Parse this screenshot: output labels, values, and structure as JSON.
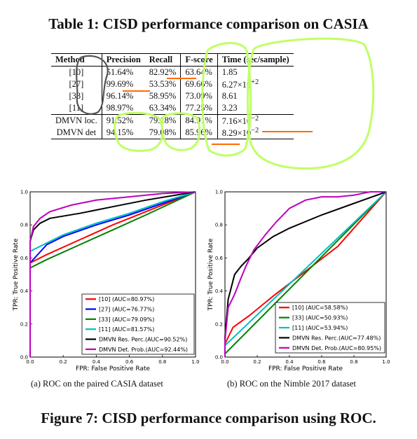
{
  "table": {
    "title": "Table 1: CISD performance comparison on CASIA",
    "headers": [
      "Method",
      "Precision",
      "Recall",
      "F-score",
      "Time (sec/sample)"
    ],
    "rows": [
      [
        "[10]",
        "51.64%",
        "82.92%",
        "63.64%",
        "1.85"
      ],
      [
        "[27]",
        "99.69%",
        "53.53%",
        "69.66%",
        "6.27×10",
        "+2"
      ],
      [
        "[33]",
        "96.14%",
        "58.95%",
        "73.09%",
        "8.61"
      ],
      [
        "[11]",
        "98.97%",
        "63.34%",
        "77.25%",
        "3.23"
      ],
      [
        "DMVN loc.",
        "91.52%",
        "79.18%",
        "84.91%",
        "7.16×10",
        "−2"
      ],
      [
        "DMVN det",
        "94.15%",
        "79.08%",
        "85.96%",
        "8.29×10",
        "−2"
      ]
    ]
  },
  "figure_caption": "Figure 7: CISD performance comparison using ROC.",
  "subcaptions": [
    "(a) ROC on the paired CASIA dataset",
    "(b) ROC on the Nimble 2017 dataset"
  ],
  "colors": {
    "red": "#ff0000",
    "blue": "#0000ff",
    "green": "#008000",
    "cyan": "#00bfbf",
    "black": "#000000",
    "magenta": "#bf00bf",
    "annot_green": "#bfff66",
    "annot_orange": "#ff6a00",
    "annot_gray": "#555555"
  },
  "chart_data": [
    {
      "type": "line",
      "xlabel": "FPR: False Positive Rate",
      "ylabel": "TPR: True Positive Rate",
      "xlim": [
        0,
        1
      ],
      "ylim": [
        0,
        1
      ],
      "xticks": [
        "0.0",
        "0.2",
        "0.4",
        "0.6",
        "0.8",
        "1.0"
      ],
      "yticks": [
        "0.0",
        "0.2",
        "0.4",
        "0.6",
        "0.8",
        "1.0"
      ],
      "legend_position": "lower-right",
      "series": [
        {
          "name": "[10] (AUC=80.97%)",
          "color": "red",
          "x": [
            0,
            0.0,
            0.1,
            0.3,
            0.5,
            0.7,
            1.0
          ],
          "y": [
            0,
            0.57,
            0.62,
            0.71,
            0.8,
            0.88,
            1.0
          ]
        },
        {
          "name": "[27] (AUC=76.77%)",
          "color": "blue",
          "x": [
            0,
            0.0,
            0.1,
            0.2,
            0.4,
            0.6,
            0.8,
            1.0
          ],
          "y": [
            0,
            0.57,
            0.68,
            0.73,
            0.8,
            0.86,
            0.93,
            1.0
          ]
        },
        {
          "name": "[33] (AUC=79.09%)",
          "color": "green",
          "x": [
            0,
            0.0,
            0.1,
            0.3,
            0.5,
            0.7,
            1.0
          ],
          "y": [
            0,
            0.54,
            0.59,
            0.68,
            0.77,
            0.86,
            1.0
          ]
        },
        {
          "name": "[11] (AUC=81.57%)",
          "color": "cyan",
          "x": [
            0,
            0.0,
            0.1,
            0.2,
            0.4,
            0.6,
            0.8,
            1.0
          ],
          "y": [
            0,
            0.64,
            0.69,
            0.74,
            0.81,
            0.87,
            0.94,
            1.0
          ]
        },
        {
          "name": "DMVN Res. Perc.(AUC=90.52%)",
          "color": "black",
          "x": [
            0,
            0.0,
            0.02,
            0.06,
            0.12,
            0.3,
            0.5,
            0.7,
            1.0
          ],
          "y": [
            0,
            0.7,
            0.77,
            0.81,
            0.84,
            0.87,
            0.91,
            0.95,
            1.0
          ]
        },
        {
          "name": "DMVN Det. Prob.(AUC=92.44%)",
          "color": "magenta",
          "x": [
            0,
            0.0,
            0.02,
            0.06,
            0.12,
            0.25,
            0.4,
            0.6,
            0.8,
            1.0
          ],
          "y": [
            0,
            0.7,
            0.79,
            0.84,
            0.88,
            0.92,
            0.95,
            0.97,
            0.99,
            1.0
          ]
        }
      ]
    },
    {
      "type": "line",
      "xlabel": "FPR: False Positive Rate",
      "ylabel": "TPR: True Positive Rate",
      "xlim": [
        0,
        1
      ],
      "ylim": [
        0,
        1
      ],
      "xticks": [
        "0.0",
        "0.2",
        "0.4",
        "0.6",
        "0.8",
        "1.0"
      ],
      "yticks": [
        "0.0",
        "0.2",
        "0.4",
        "0.6",
        "0.8",
        "1.0"
      ],
      "legend_position": "lower-right",
      "series": [
        {
          "name": "[10] (AUC=58.58%)",
          "color": "red",
          "x": [
            0,
            0.0,
            0.05,
            0.15,
            0.3,
            0.5,
            0.7,
            1.0
          ],
          "y": [
            0,
            0.08,
            0.18,
            0.25,
            0.37,
            0.52,
            0.67,
            1.0
          ]
        },
        {
          "name": "[33] (AUC=50.93%)",
          "color": "green",
          "x": [
            0,
            0.0,
            1.0
          ],
          "y": [
            0,
            0.02,
            1.0
          ]
        },
        {
          "name": "[11] (AUC=53.94%)",
          "color": "cyan",
          "x": [
            0,
            0.0,
            1.0
          ],
          "y": [
            0,
            0.07,
            1.0
          ]
        },
        {
          "name": "DMVN Res. Perc.(AUC=77.48%)",
          "color": "black",
          "x": [
            0,
            0.0,
            0.02,
            0.06,
            0.1,
            0.14,
            0.2,
            0.3,
            0.4,
            0.6,
            0.8,
            1.0
          ],
          "y": [
            0,
            0.12,
            0.35,
            0.5,
            0.55,
            0.59,
            0.66,
            0.73,
            0.78,
            0.86,
            0.93,
            1.0
          ]
        },
        {
          "name": "DMVN Det. Prob.(AUC=80.95%)",
          "color": "magenta",
          "x": [
            0,
            0.0,
            0.02,
            0.06,
            0.1,
            0.13,
            0.18,
            0.25,
            0.32,
            0.4,
            0.5,
            0.6,
            0.7,
            0.8,
            0.9,
            1.0
          ],
          "y": [
            0,
            0.1,
            0.3,
            0.38,
            0.48,
            0.55,
            0.65,
            0.74,
            0.82,
            0.9,
            0.95,
            0.97,
            0.97,
            0.98,
            1.0,
            1.0
          ]
        }
      ]
    }
  ]
}
